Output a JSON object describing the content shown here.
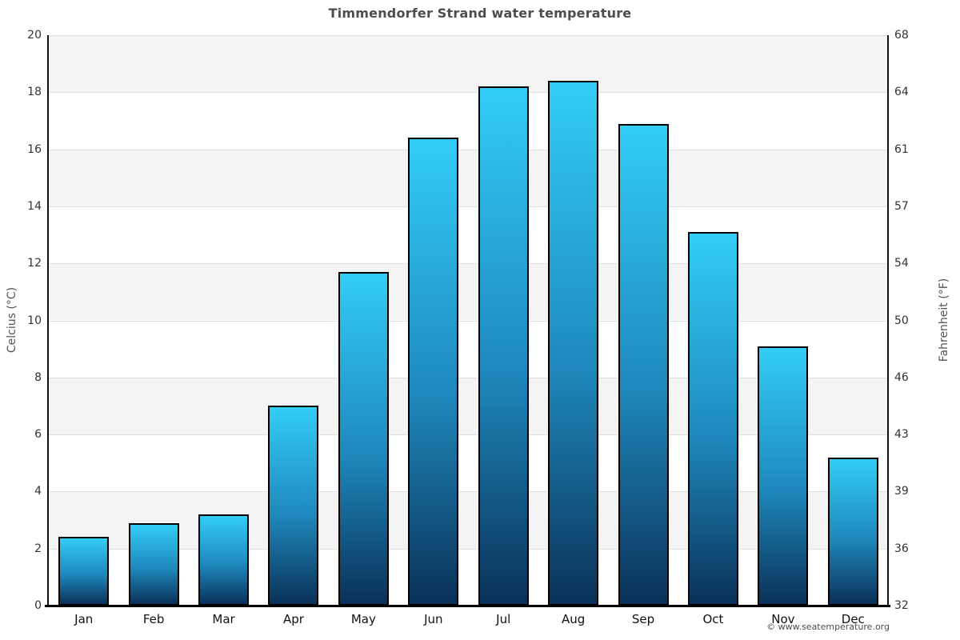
{
  "chart_data": {
    "type": "bar",
    "title": "Timmendorfer Strand water temperature",
    "categories": [
      "Jan",
      "Feb",
      "Mar",
      "Apr",
      "May",
      "Jun",
      "Jul",
      "Aug",
      "Sep",
      "Oct",
      "Nov",
      "Dec"
    ],
    "values": [
      2.4,
      2.9,
      3.2,
      7.0,
      11.7,
      16.4,
      18.2,
      18.4,
      16.9,
      13.1,
      9.1,
      5.2
    ],
    "xlabel": "",
    "y_left": {
      "label": "Celcius (°C)",
      "ticks": [
        0,
        2,
        4,
        6,
        8,
        10,
        12,
        14,
        16,
        18,
        20
      ],
      "range": [
        0,
        20
      ]
    },
    "y_right": {
      "label": "Fahrenheit (°F)",
      "tick_labels": [
        "32",
        "36",
        "39",
        "43",
        "46",
        "50",
        "54",
        "57",
        "61",
        "64",
        "68"
      ]
    },
    "legend": "none",
    "grid": "on",
    "bar_style": {
      "gradient_top": "#33ccf8",
      "gradient_mid": "#1e88bc",
      "gradient_bottom": "#0a3158",
      "border_color": "#000000"
    },
    "plot_style": {
      "band_color": "#f4f4f4",
      "band_alt_color": "#ffffff",
      "gridline_color": "#e0e0e0",
      "axis_color": "#111111"
    },
    "attribution": "© www.seatemperature.org"
  }
}
